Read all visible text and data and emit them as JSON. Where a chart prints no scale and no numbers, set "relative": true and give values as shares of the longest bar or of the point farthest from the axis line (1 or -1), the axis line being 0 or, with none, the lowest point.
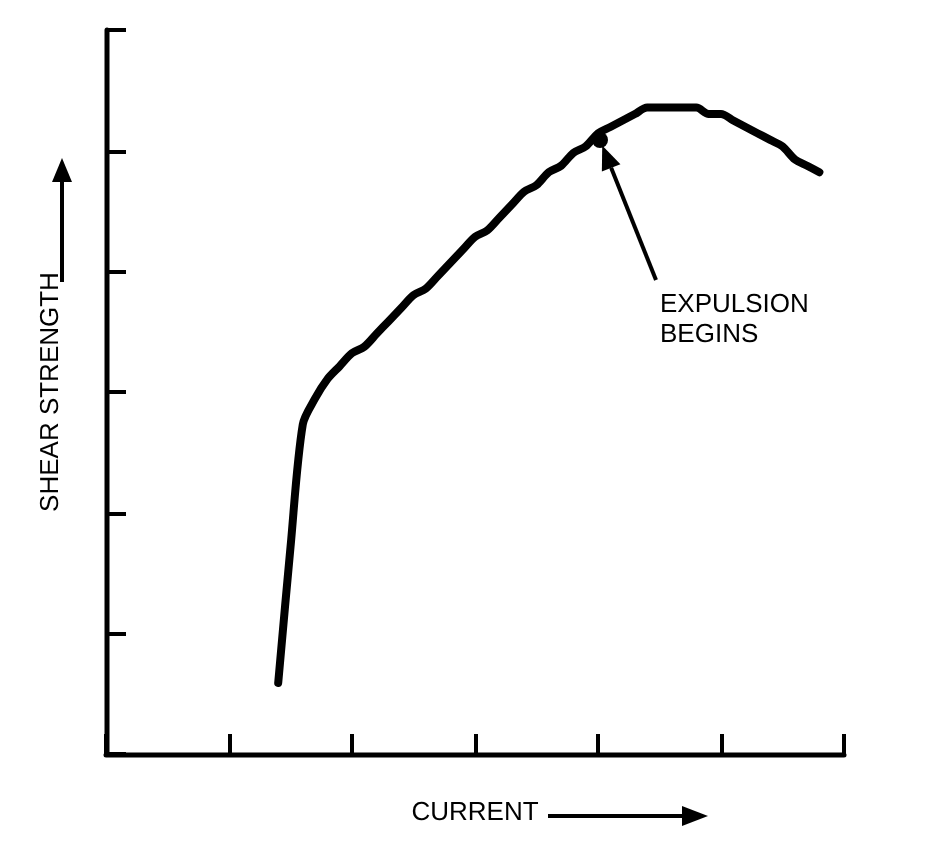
{
  "chart_data": {
    "type": "line",
    "relative": true,
    "xlabel": "CURRENT",
    "ylabel": "SHEAR STRENGTH",
    "color": "#000000",
    "grid": false,
    "categories": [
      null,
      null,
      null,
      null,
      null,
      null,
      null,
      null,
      null,
      null,
      null,
      null,
      null,
      null,
      null,
      null,
      null,
      null,
      null,
      null,
      null,
      null,
      null,
      null,
      null,
      null,
      null,
      null,
      null,
      null,
      null,
      null,
      null,
      null,
      null,
      null,
      null,
      null,
      null,
      null,
      null,
      null,
      null,
      null,
      null,
      null,
      null,
      null,
      null,
      null,
      null,
      null,
      null,
      null,
      null,
      null,
      null,
      null,
      null,
      null,
      null
    ],
    "values": [
      null,
      null,
      null,
      null,
      null,
      null,
      null,
      null,
      null,
      null,
      null,
      null,
      null,
      null,
      0.11,
      0.32,
      0.51,
      0.55,
      0.58,
      0.6,
      0.62,
      0.63,
      0.65,
      0.67,
      0.69,
      0.71,
      0.72,
      0.74,
      0.76,
      0.78,
      0.8,
      0.81,
      0.83,
      0.85,
      0.87,
      0.88,
      0.9,
      0.91,
      0.93,
      0.94,
      0.96,
      0.97,
      0.98,
      0.99,
      1,
      1,
      1,
      1,
      1,
      0.99,
      0.99,
      0.98,
      0.97,
      0.96,
      0.95,
      0.94,
      0.92,
      0.91,
      0.9,
      null,
      null
    ],
    "annotations": [
      "EXPULSION BEGINS"
    ]
  }
}
